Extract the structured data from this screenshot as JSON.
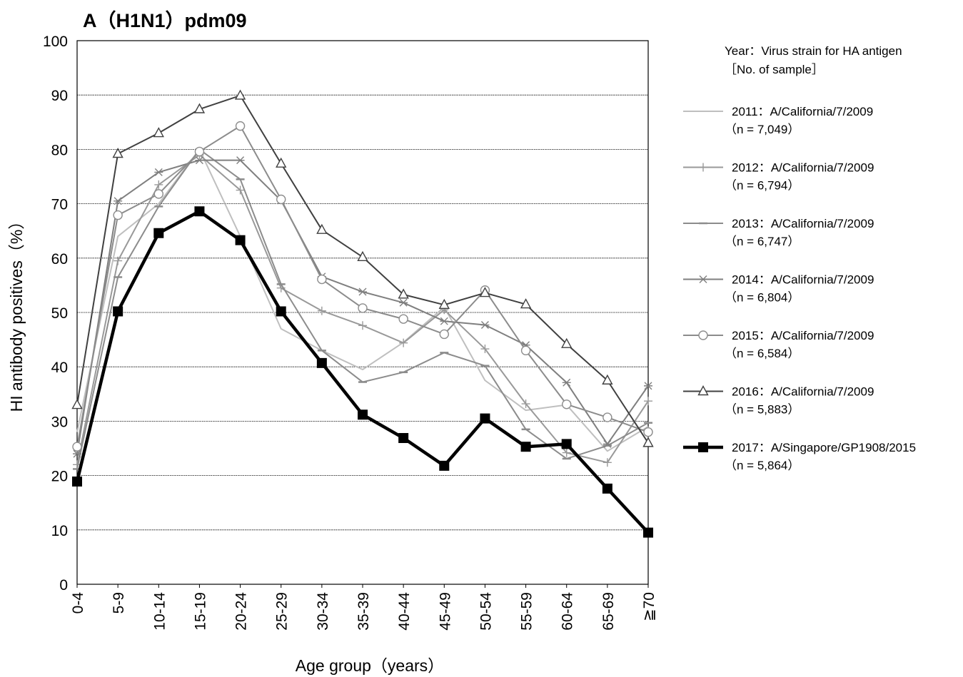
{
  "chart_data": {
    "type": "line",
    "title": "A（H1N1）pdm09",
    "xlabel": "Age group（years）",
    "ylabel": "HI antibody positives（%）",
    "ylim": [
      0,
      100
    ],
    "yticks": [
      0,
      10,
      20,
      30,
      40,
      50,
      60,
      70,
      80,
      90,
      100
    ],
    "grid": true,
    "legend_position": "right",
    "legend_title": [
      "Year：Virus strain for HA antigen",
      "［No. of sample］"
    ],
    "categories": [
      "0-4",
      "5-9",
      "10-14",
      "15-19",
      "20-24",
      "25-29",
      "30-34",
      "35-39",
      "40-44",
      "45-49",
      "50-54",
      "55-59",
      "60-64",
      "65-69",
      "≧70"
    ],
    "series": [
      {
        "name": "2011：A/California/7/2009",
        "n_label": "（n = 7,049）",
        "color": "#bfbfbf",
        "marker": "none",
        "width": 2,
        "values": [
          28,
          64,
          70,
          80,
          64,
          47,
          43,
          39.5,
          44.5,
          51,
          37.5,
          32,
          33,
          24.5,
          29
        ]
      },
      {
        "name": "2012：A/California/7/2009",
        "n_label": "（n = 6,794）",
        "color": "#999999",
        "marker": "plus",
        "width": 2,
        "values": [
          22,
          59.5,
          73.5,
          79,
          72.5,
          54.5,
          50.3,
          47.6,
          44.4,
          50.5,
          43.3,
          33.2,
          24.2,
          22.4,
          33.7
        ]
      },
      {
        "name": "2013：A/California/7/2009",
        "n_label": "（n = 6,747）",
        "color": "#8c8c8c",
        "marker": "dash",
        "width": 2,
        "values": [
          21.2,
          56.5,
          69.5,
          80,
          74.5,
          55.2,
          43,
          37.2,
          39,
          42.6,
          40.2,
          28.5,
          23.1,
          25.5,
          29.7
        ]
      },
      {
        "name": "2014：A/California/7/2009",
        "n_label": "（n = 6,804）",
        "color": "#7f7f7f",
        "marker": "star",
        "width": 2,
        "values": [
          24,
          70.5,
          75.8,
          78,
          78,
          70.6,
          56.6,
          53.8,
          51.8,
          48.4,
          47.7,
          44,
          37.1,
          25.8,
          36.5
        ]
      },
      {
        "name": "2015：A/California/7/2009",
        "n_label": "（n = 6,584）",
        "color": "#8c8c8c",
        "marker": "circle",
        "width": 2,
        "values": [
          25.3,
          67.9,
          71.8,
          79.6,
          84.3,
          70.8,
          56.1,
          50.8,
          48.8,
          46,
          54.1,
          43,
          33.1,
          30.7,
          28
        ]
      },
      {
        "name": "2016：A/California/7/2009",
        "n_label": "（n = 5,883）",
        "color": "#404040",
        "marker": "triangle",
        "width": 2,
        "values": [
          33,
          79.2,
          83,
          87.4,
          89.9,
          77.4,
          65.2,
          60.2,
          53.3,
          51.4,
          53.6,
          51.5,
          44.2,
          37.5,
          26
        ]
      },
      {
        "name": "2017：A/Singapore/GP1908/2015",
        "n_label": "（n = 5,864）",
        "color": "#000000",
        "marker": "square",
        "width": 4.5,
        "values": [
          18.9,
          50.2,
          64.6,
          68.6,
          63.3,
          50.2,
          40.7,
          31.2,
          26.9,
          21.8,
          30.5,
          25.3,
          25.8,
          17.6,
          9.5
        ]
      }
    ]
  }
}
